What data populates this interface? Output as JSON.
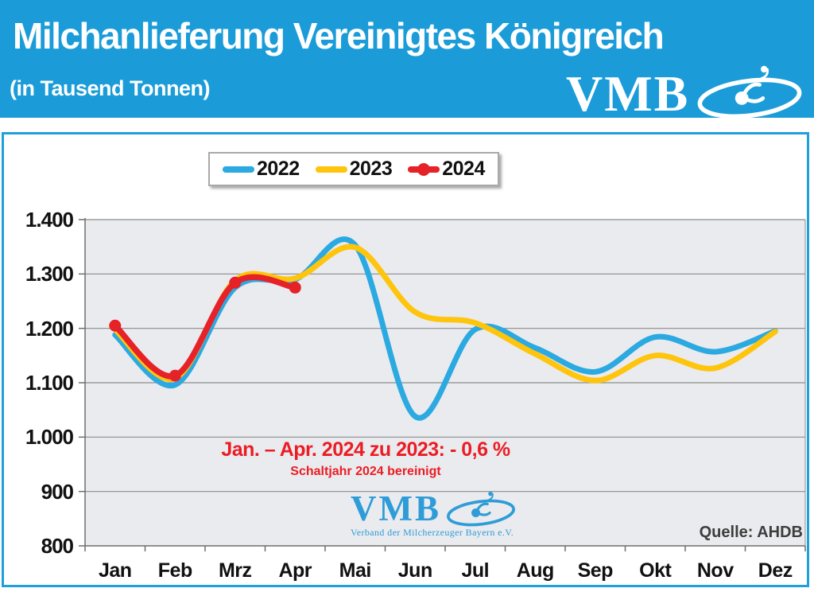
{
  "header": {
    "title": "Milchanlieferung Vereinigtes Königreich",
    "subtitle": "(in Tausend Tonnen)",
    "logo_text": "VMB"
  },
  "chart_data": {
    "type": "line",
    "categories": [
      "Jan",
      "Feb",
      "Mrz",
      "Apr",
      "Mai",
      "Jun",
      "Jul",
      "Aug",
      "Sep",
      "Okt",
      "Nov",
      "Dez"
    ],
    "ylim": [
      800,
      1400
    ],
    "ytick_values": [
      1400,
      1300,
      1200,
      1100,
      1000,
      900,
      800
    ],
    "ytick_labels": [
      "1.400",
      "1.300",
      "1.200",
      "1.100",
      "1.000",
      "900",
      "800"
    ],
    "grid": true,
    "legend_position": "top-center",
    "series": [
      {
        "name": "2022",
        "color": "#2BA9E1",
        "markers": false,
        "values": [
          1188,
          1096,
          1275,
          1290,
          1353,
          1038,
          1198,
          1164,
          1120,
          1184,
          1157,
          1195
        ]
      },
      {
        "name": "2023",
        "color": "#FFC40C",
        "markers": false,
        "values": [
          1198,
          1108,
          1288,
          1292,
          1349,
          1230,
          1210,
          1153,
          1104,
          1150,
          1127,
          1194
        ]
      },
      {
        "name": "2024",
        "color": "#E62128",
        "markers": true,
        "values": [
          1205,
          1113,
          1284,
          1275
        ]
      }
    ],
    "annotation": {
      "line1": "Jan. – Apr. 2024 zu 2023: - 0,6 %",
      "line2": "Schaltjahr 2024 bereinigt"
    },
    "source": "Quelle: AHDB",
    "plot_bg": "#E9EBEE",
    "grid_color": "#8C8C8C"
  },
  "watermark": {
    "text": "VMB",
    "caption": "Verband der Milcherzeuger Bayern e.V."
  },
  "colors": {
    "brand_blue": "#1B9CD8",
    "panel_border": "#1F9FDB",
    "annotation_red": "#EC1C24",
    "watermark_blue": "#2E9CD8",
    "source_gray": "#3D3D3D"
  }
}
